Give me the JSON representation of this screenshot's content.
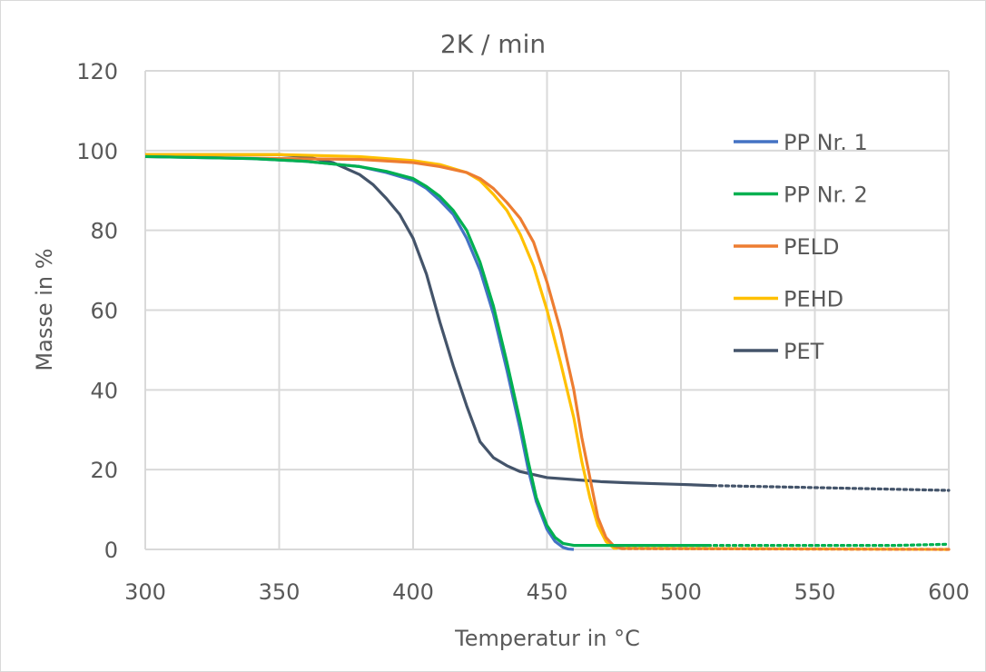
{
  "chart_data": {
    "type": "line",
    "title": "2K / min",
    "xlabel": "Temperatur in °C",
    "ylabel": "Masse in %",
    "xlim": [
      300,
      600
    ],
    "ylim": [
      0,
      120
    ],
    "xticks": [
      300,
      350,
      400,
      450,
      500,
      550,
      600
    ],
    "yticks": [
      0,
      20,
      40,
      60,
      80,
      100,
      120
    ],
    "xtick_labels": [
      "300",
      "350",
      "400",
      "450",
      "500",
      "550",
      "600"
    ],
    "ytick_labels": [
      "0",
      "20",
      "40",
      "60",
      "80",
      "100",
      "120"
    ],
    "grid": true,
    "legend_position": "right",
    "series": [
      {
        "name": "PP Nr. 1",
        "color": "#4472C4",
        "x": [
          300,
          340,
          360,
          380,
          390,
          400,
          405,
          410,
          415,
          420,
          425,
          430,
          435,
          440,
          443,
          446,
          450,
          453,
          456,
          458,
          460
        ],
        "y": [
          98.5,
          98,
          97.3,
          96,
          94.5,
          92.5,
          90.5,
          87.5,
          84,
          78,
          70,
          59,
          45,
          30,
          20,
          12,
          5,
          2,
          0.5,
          0.1,
          0
        ]
      },
      {
        "name": "PP Nr. 2",
        "color": "#00B050",
        "x": [
          300,
          340,
          360,
          380,
          390,
          400,
          405,
          410,
          415,
          420,
          425,
          430,
          435,
          440,
          443,
          446,
          450,
          453,
          456,
          460,
          470,
          510,
          580,
          600
        ],
        "y": [
          98.5,
          98,
          97.3,
          96,
          94.8,
          93,
          91,
          88.5,
          85,
          80,
          72,
          61,
          47,
          32,
          22,
          13,
          6,
          3,
          1.5,
          1,
          1,
          1,
          1,
          1.3
        ],
        "dotted_after_x": 512
      },
      {
        "name": "PELD",
        "color": "#ED7D31",
        "x": [
          300,
          350,
          380,
          400,
          410,
          420,
          425,
          430,
          435,
          440,
          445,
          450,
          455,
          460,
          463,
          466,
          469,
          472,
          475,
          478,
          600
        ],
        "y": [
          98.5,
          98,
          97.8,
          97,
          96,
          94.5,
          93,
          90.5,
          87,
          83,
          77,
          67,
          55,
          40,
          28,
          18,
          8,
          3,
          0.8,
          0.2,
          0
        ],
        "dotted_after_x": 512
      },
      {
        "name": "PEHD",
        "color": "#FFC000",
        "x": [
          300,
          350,
          380,
          400,
          410,
          420,
          425,
          430,
          435,
          440,
          445,
          450,
          455,
          460,
          463,
          466,
          469,
          472,
          475,
          600
        ],
        "y": [
          99,
          99,
          98.5,
          97.5,
          96.5,
          94.5,
          92.5,
          89,
          85,
          79,
          71,
          60,
          47,
          33,
          22,
          13,
          6,
          2,
          0.3,
          0
        ],
        "dotted_after_x": 512
      },
      {
        "name": "PET",
        "color": "#44546A",
        "x": [
          300,
          350,
          360,
          370,
          380,
          385,
          390,
          395,
          400,
          405,
          410,
          415,
          420,
          425,
          430,
          435,
          440,
          450,
          460,
          470,
          480,
          490,
          500,
          512,
          550,
          600
        ],
        "y": [
          99,
          99,
          98.5,
          97,
          94,
          91.5,
          88,
          84,
          78,
          69,
          57,
          46,
          36,
          27,
          23,
          21,
          19.5,
          18,
          17.5,
          17,
          16.7,
          16.5,
          16.3,
          16,
          15.5,
          14.8
        ],
        "dotted_after_x": 512
      }
    ]
  }
}
